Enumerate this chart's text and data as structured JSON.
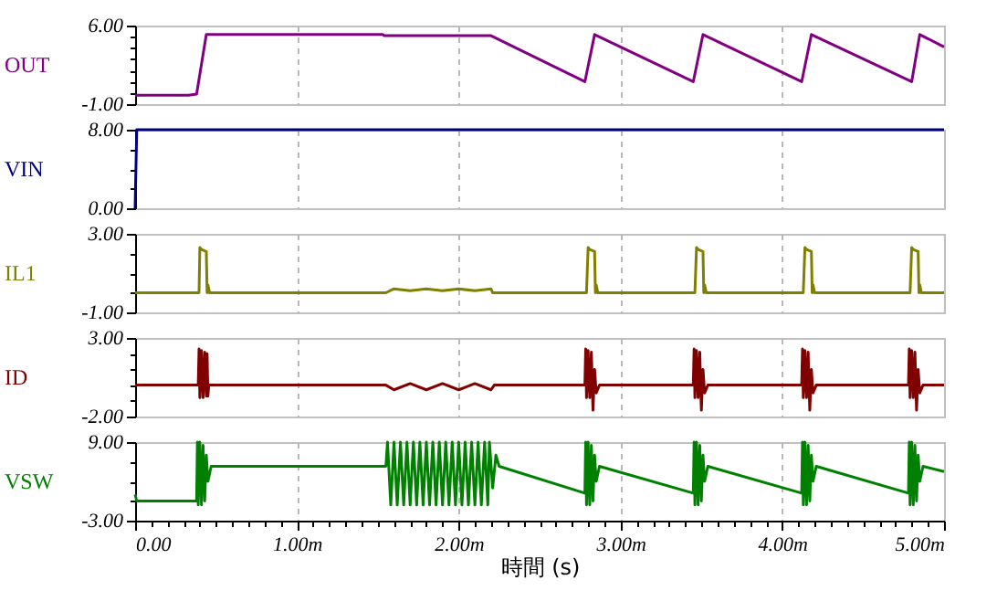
{
  "chart_data": [
    {
      "type": "line",
      "ylabel": "OUT",
      "xlim": [
        0,
        5
      ],
      "ylim": [
        -1,
        6
      ],
      "grid": "x",
      "tick_labels": "y",
      "marker": "none",
      "line_style": "solid",
      "xticks": [
        0,
        1,
        2,
        3,
        4,
        5
      ],
      "yticks": [
        {
          "value": -1,
          "label": "-1.00"
        },
        {
          "value": 0,
          "label": null
        },
        {
          "value": 1,
          "label": null
        },
        {
          "value": 2,
          "label": null
        },
        {
          "value": 3,
          "label": null
        },
        {
          "value": 4,
          "label": null
        },
        {
          "value": 5,
          "label": null
        },
        {
          "value": 6,
          "label": "6.00"
        }
      ],
      "series": [
        {
          "color": "#800080",
          "x": [
            0,
            0.33,
            0.38,
            0.44,
            1.53,
            1.54,
            2.2,
            2.78,
            2.84,
            3.45,
            3.51,
            4.12,
            4.18,
            4.8,
            4.85,
            5
          ],
          "values": [
            -0.2,
            -0.2,
            -0.1,
            5.2,
            5.2,
            5.1,
            5.1,
            1.0,
            5.2,
            1.0,
            5.2,
            1.0,
            5.2,
            1.0,
            5.2,
            4.1
          ]
        }
      ]
    },
    {
      "type": "line",
      "ylabel": "VIN",
      "xlim": [
        0,
        5
      ],
      "ylim": [
        0,
        8
      ],
      "grid": "x",
      "tick_labels": "y",
      "marker": "none",
      "line_style": "solid",
      "xticks": [
        0,
        1,
        2,
        3,
        4,
        5
      ],
      "yticks": [
        {
          "value": 0,
          "label": "0.00"
        },
        {
          "value": 2,
          "label": null
        },
        {
          "value": 4,
          "label": null
        },
        {
          "value": 6,
          "label": null
        },
        {
          "value": 8,
          "label": "8.00"
        }
      ],
      "series": [
        {
          "color": "#000080",
          "x": [
            0,
            0.01,
            5
          ],
          "values": [
            0,
            8,
            8
          ]
        }
      ]
    },
    {
      "type": "line",
      "ylabel": "IL1",
      "xlim": [
        0,
        5
      ],
      "ylim": [
        -1,
        3
      ],
      "grid": "x",
      "tick_labels": "y",
      "marker": "none",
      "line_style": "solid",
      "xticks": [
        0,
        1,
        2,
        3,
        4,
        5
      ],
      "yticks": [
        {
          "value": -1,
          "label": "-1.00"
        },
        {
          "value": 0,
          "label": null
        },
        {
          "value": 1,
          "label": null
        },
        {
          "value": 2,
          "label": null
        },
        {
          "value": 3,
          "label": "3.00"
        }
      ],
      "series": [
        {
          "color": "#808000",
          "x": [
            0,
            0.395,
            0.4,
            0.41,
            0.44,
            0.445,
            0.45,
            0.46,
            1.55,
            1.6,
            1.7,
            1.8,
            1.9,
            2.0,
            2.1,
            2.2,
            2.21,
            2.79,
            2.8,
            2.81,
            2.84,
            2.845,
            2.85,
            2.86,
            3.46,
            3.47,
            3.48,
            3.51,
            3.515,
            3.52,
            3.53,
            4.13,
            4.14,
            4.15,
            4.18,
            4.185,
            4.19,
            4.2,
            4.79,
            4.8,
            4.81,
            4.84,
            4.845,
            4.85,
            4.86,
            5
          ],
          "values": [
            0,
            0,
            2.3,
            2.2,
            2.1,
            0,
            0.4,
            0,
            0,
            0.2,
            0.1,
            0.2,
            0.1,
            0.2,
            0.1,
            0.2,
            0,
            0,
            2.3,
            2.2,
            2.1,
            0,
            0.4,
            0,
            0,
            2.3,
            2.2,
            2.1,
            0,
            0.4,
            0,
            0,
            2.3,
            2.2,
            2.1,
            0,
            0.4,
            0,
            0,
            2.3,
            2.2,
            2.1,
            0,
            0.4,
            0,
            0
          ]
        }
      ]
    },
    {
      "type": "line",
      "ylabel": "ID",
      "xlim": [
        0,
        5
      ],
      "ylim": [
        -2,
        3
      ],
      "grid": "x",
      "tick_labels": "y",
      "marker": "none",
      "line_style": "solid",
      "xticks": [
        0,
        1,
        2,
        3,
        4,
        5
      ],
      "yticks": [
        {
          "value": -2,
          "label": "-2.00"
        },
        {
          "value": -1,
          "label": null
        },
        {
          "value": 0,
          "label": null
        },
        {
          "value": 1,
          "label": null
        },
        {
          "value": 2,
          "label": null
        },
        {
          "value": 3,
          "label": "3.00"
        }
      ],
      "series": [
        {
          "color": "#800000",
          "x": [
            0,
            0.39,
            0.395,
            0.4,
            0.41,
            0.42,
            0.43,
            0.44,
            0.445,
            0.45,
            0.455,
            1.55,
            1.6,
            1.7,
            1.8,
            1.9,
            2.0,
            2.1,
            2.2,
            2.22,
            2.78,
            2.785,
            2.79,
            2.8,
            2.81,
            2.82,
            2.83,
            2.84,
            2.85,
            2.87,
            3.45,
            3.455,
            3.46,
            3.47,
            3.48,
            3.49,
            3.5,
            3.51,
            3.52,
            3.54,
            4.12,
            4.125,
            4.13,
            4.14,
            4.15,
            4.16,
            4.17,
            4.18,
            4.19,
            4.21,
            4.78,
            4.785,
            4.79,
            4.8,
            4.81,
            4.82,
            4.83,
            4.84,
            4.85,
            4.87,
            5
          ],
          "values": [
            0,
            0,
            2.3,
            -0.8,
            2.2,
            -0.8,
            2.1,
            -0.7,
            2.0,
            -0.7,
            0,
            0,
            -0.3,
            0.1,
            -0.3,
            0.1,
            -0.3,
            0.1,
            -0.3,
            0,
            0,
            2.3,
            -0.8,
            2.2,
            -0.8,
            2.1,
            -1.6,
            1.0,
            -0.5,
            0,
            0,
            2.3,
            -0.8,
            2.2,
            -0.8,
            2.1,
            -1.6,
            1.0,
            -0.5,
            0,
            0,
            2.3,
            -0.8,
            2.2,
            -0.8,
            2.1,
            -1.6,
            1.0,
            -0.5,
            0,
            0,
            2.3,
            -0.8,
            2.2,
            -0.8,
            2.1,
            -1.6,
            1.0,
            -0.5,
            0,
            0
          ]
        }
      ]
    },
    {
      "type": "line",
      "ylabel": "VSW",
      "xlabel": "時間 (s)",
      "xlim": [
        0,
        5
      ],
      "ylim": [
        -3,
        9
      ],
      "grid": "x",
      "marker": "none",
      "line_style": "solid",
      "xticks": [
        {
          "value": 0,
          "label": "0.00"
        },
        {
          "value": 0.1,
          "label": null
        },
        {
          "value": 0.2,
          "label": null
        },
        {
          "value": 0.3,
          "label": null
        },
        {
          "value": 0.4,
          "label": null
        },
        {
          "value": 0.5,
          "label": null
        },
        {
          "value": 0.6,
          "label": null
        },
        {
          "value": 0.7,
          "label": null
        },
        {
          "value": 0.8,
          "label": null
        },
        {
          "value": 0.9,
          "label": null
        },
        {
          "value": 1,
          "label": "1.00m"
        },
        {
          "value": 1.1,
          "label": null
        },
        {
          "value": 1.2,
          "label": null
        },
        {
          "value": 1.3,
          "label": null
        },
        {
          "value": 1.4,
          "label": null
        },
        {
          "value": 1.5,
          "label": null
        },
        {
          "value": 1.6,
          "label": null
        },
        {
          "value": 1.7,
          "label": null
        },
        {
          "value": 1.8,
          "label": null
        },
        {
          "value": 1.9,
          "label": null
        },
        {
          "value": 2,
          "label": "2.00m"
        },
        {
          "value": 2.1,
          "label": null
        },
        {
          "value": 2.2,
          "label": null
        },
        {
          "value": 2.3,
          "label": null
        },
        {
          "value": 2.4,
          "label": null
        },
        {
          "value": 2.5,
          "label": null
        },
        {
          "value": 2.6,
          "label": null
        },
        {
          "value": 2.7,
          "label": null
        },
        {
          "value": 2.8,
          "label": null
        },
        {
          "value": 2.9,
          "label": null
        },
        {
          "value": 3,
          "label": "3.00m"
        },
        {
          "value": 3.1,
          "label": null
        },
        {
          "value": 3.2,
          "label": null
        },
        {
          "value": 3.3,
          "label": null
        },
        {
          "value": 3.4,
          "label": null
        },
        {
          "value": 3.5,
          "label": null
        },
        {
          "value": 3.6,
          "label": null
        },
        {
          "value": 3.7,
          "label": null
        },
        {
          "value": 3.8,
          "label": null
        },
        {
          "value": 3.9,
          "label": null
        },
        {
          "value": 4,
          "label": "4.00m"
        },
        {
          "value": 4.1,
          "label": null
        },
        {
          "value": 4.2,
          "label": null
        },
        {
          "value": 4.3,
          "label": null
        },
        {
          "value": 4.4,
          "label": null
        },
        {
          "value": 4.5,
          "label": null
        },
        {
          "value": 4.6,
          "label": null
        },
        {
          "value": 4.7,
          "label": null
        },
        {
          "value": 4.8,
          "label": null
        },
        {
          "value": 4.9,
          "label": null
        },
        {
          "value": 5,
          "label": "5.00m"
        }
      ],
      "yticks": [
        {
          "value": -3,
          "label": "-3.00"
        },
        {
          "value": 0,
          "label": null
        },
        {
          "value": 3,
          "label": null
        },
        {
          "value": 6,
          "label": null
        },
        {
          "value": 9,
          "label": "9.00"
        }
      ],
      "series": [
        {
          "color": "#008000",
          "x": [
            0,
            0.01,
            0.38,
            0.385,
            0.39,
            0.4,
            0.41,
            0.42,
            0.43,
            0.44,
            0.45,
            0.47,
            1.55,
            1.56,
            1.58,
            1.6,
            1.62,
            1.64,
            1.66,
            1.68,
            1.7,
            1.72,
            1.74,
            1.76,
            1.78,
            1.8,
            1.82,
            1.84,
            1.86,
            1.88,
            1.9,
            1.92,
            1.94,
            1.96,
            1.98,
            2.0,
            2.02,
            2.04,
            2.06,
            2.08,
            2.1,
            2.12,
            2.14,
            2.16,
            2.18,
            2.19,
            2.21,
            2.23,
            2.25,
            2.78,
            2.785,
            2.79,
            2.8,
            2.81,
            2.82,
            2.83,
            2.84,
            2.85,
            2.87,
            3.45,
            3.455,
            3.46,
            3.47,
            3.48,
            3.49,
            3.5,
            3.51,
            3.52,
            3.54,
            4.12,
            4.125,
            4.13,
            4.14,
            4.15,
            4.16,
            4.17,
            4.18,
            4.19,
            4.21,
            4.78,
            4.785,
            4.79,
            4.8,
            4.81,
            4.82,
            4.83,
            4.84,
            4.85,
            4.87,
            5
          ],
          "values": [
            1,
            0,
            0,
            9,
            -0.6,
            9,
            -0.6,
            8.5,
            0,
            7,
            3,
            5.3,
            5.3,
            9,
            -0.6,
            9,
            -0.6,
            9,
            -0.6,
            9,
            -0.6,
            9,
            -0.6,
            9,
            -0.6,
            9,
            -0.6,
            9,
            -0.6,
            9,
            -0.6,
            9,
            -0.6,
            9,
            -0.6,
            9,
            -0.6,
            9,
            -0.6,
            9,
            -0.6,
            9,
            -0.6,
            9,
            -0.6,
            9,
            2,
            7,
            5.3,
            1.2,
            9,
            -0.6,
            9,
            -0.6,
            8.5,
            0,
            7,
            3,
            5.3,
            1.2,
            9,
            -0.6,
            9,
            -0.6,
            8.5,
            0,
            7,
            3,
            5.3,
            1.2,
            9,
            -0.6,
            9,
            -0.6,
            8.5,
            0,
            7,
            3,
            5.3,
            1.2,
            9,
            -0.6,
            9,
            -0.6,
            8.5,
            0,
            7,
            3,
            5.3,
            4.5
          ]
        }
      ]
    }
  ]
}
